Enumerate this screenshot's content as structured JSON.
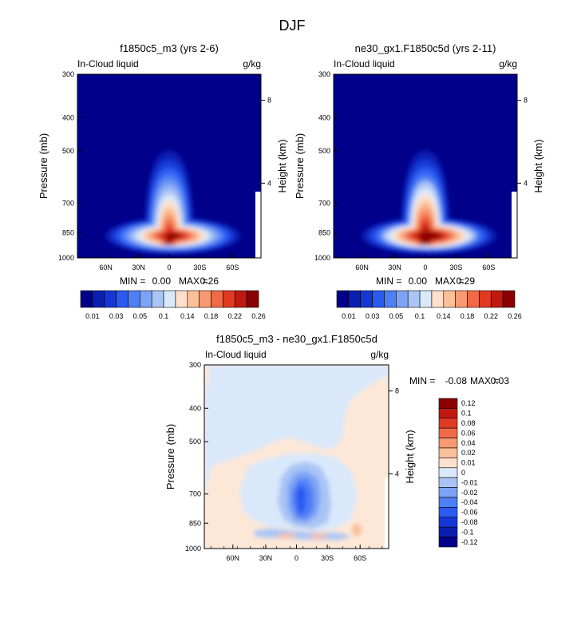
{
  "figure_title": "DJF",
  "colors": {
    "frame": "#000000",
    "background_fill": "#00008b",
    "levels": [
      "#00008b",
      "#0a1fb0",
      "#1437d6",
      "#2b5af0",
      "#4f7ff5",
      "#7ca3f5",
      "#a9c5f5",
      "#d9e8fb",
      "#fde0cc",
      "#fbbf9a",
      "#f79a72",
      "#f06a48",
      "#e03a22",
      "#c01a10",
      "#8b0000"
    ]
  },
  "chart_data": [
    {
      "type": "heatmap",
      "title": "f1850c5_m3 (yrs 2-6)",
      "left_label": "In-Cloud liquid",
      "right_label": "g/kg",
      "ylabel": "Pressure (mb)",
      "ylabel_right": "Height (km)",
      "yticks": [
        "300",
        "400",
        "500",
        "700",
        "850",
        "1000"
      ],
      "yticks_right": [
        "8",
        "4"
      ],
      "xticks": [
        "60N",
        "30N",
        "0",
        "30S",
        "60S"
      ],
      "min_label": "MIN =",
      "min": "0.00",
      "max_label": "MAX =",
      "max": "0.26",
      "colorbar_labels": [
        "0.01",
        "0.03",
        "0.05",
        "0.1",
        "0.14",
        "0.18",
        "0.22",
        "0.26"
      ],
      "peak": 0.26
    },
    {
      "type": "heatmap",
      "title": "ne30_gx1.F1850c5d (yrs 2-11)",
      "left_label": "In-Cloud liquid",
      "right_label": "g/kg",
      "ylabel": "Pressure (mb)",
      "ylabel_right": "Height (km)",
      "yticks": [
        "300",
        "400",
        "500",
        "700",
        "850",
        "1000"
      ],
      "yticks_right": [
        "8",
        "4"
      ],
      "xticks": [
        "60N",
        "30N",
        "0",
        "30S",
        "60S"
      ],
      "min_label": "MIN =",
      "min": "0.00",
      "max_label": "MAX =",
      "max": "0.29",
      "colorbar_labels": [
        "0.01",
        "0.03",
        "0.05",
        "0.1",
        "0.14",
        "0.18",
        "0.22",
        "0.26"
      ],
      "peak": 0.29
    },
    {
      "type": "heatmap",
      "title": "f1850c5_m3 - ne30_gx1.F1850c5d",
      "left_label": "In-Cloud liquid",
      "right_label": "g/kg",
      "ylabel": "Pressure (mb)",
      "ylabel_right": "Height (km)",
      "yticks": [
        "300",
        "400",
        "500",
        "700",
        "850",
        "1000"
      ],
      "yticks_right": [
        "8",
        "4"
      ],
      "xticks": [
        "60N",
        "30N",
        "0",
        "30S",
        "60S"
      ],
      "min_label": "MIN =",
      "min": "-0.08",
      "max_label": "MAX =",
      "max": "0.03",
      "colorbar_labels": [
        "0.12",
        "0.1",
        "0.08",
        "0.06",
        "0.04",
        "0.02",
        "0.01",
        "0",
        "-0.01",
        "-0.02",
        "-0.04",
        "-0.06",
        "-0.08",
        "-0.1",
        "-0.12"
      ]
    }
  ]
}
